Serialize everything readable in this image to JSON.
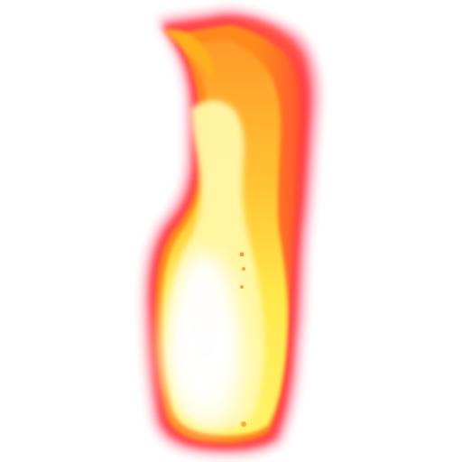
{
  "scene": {
    "background_color": "#ffffff",
    "subject": "flame",
    "colors": {
      "outer_glow": "#ff2a55",
      "outer_red": "#ff3b3b",
      "orange": "#ff8a1e",
      "amber": "#ffb21e",
      "yellow": "#ffe84a",
      "pale_yellow": "#fff8a8",
      "core_white": "#ffffff"
    }
  }
}
